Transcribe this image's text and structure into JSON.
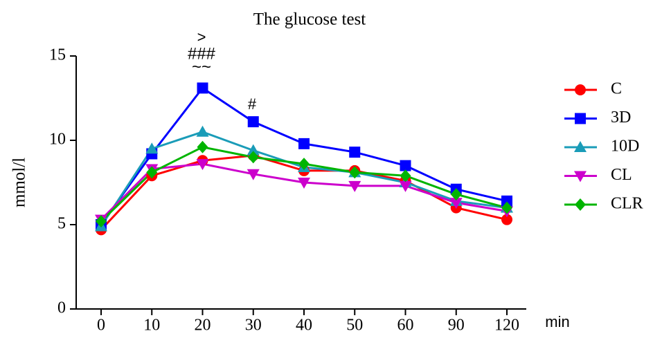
{
  "chart_data": {
    "type": "line",
    "title": "The glucose test",
    "x_label": "min",
    "y_label": "mmol/l",
    "categories": [
      "0",
      "10",
      "20",
      "30",
      "40",
      "50",
      "60",
      "90",
      "120"
    ],
    "series": [
      {
        "name": "C",
        "color": "#ff0000",
        "marker": "circle",
        "values": [
          4.7,
          7.9,
          8.8,
          9.1,
          8.2,
          8.2,
          7.6,
          6.0,
          5.3
        ]
      },
      {
        "name": "3D",
        "color": "#0000ff",
        "marker": "square",
        "values": [
          5.0,
          9.2,
          13.1,
          11.1,
          9.8,
          9.3,
          8.5,
          7.1,
          6.4
        ]
      },
      {
        "name": "10D",
        "color": "#1a9cb8",
        "marker": "triangle",
        "values": [
          4.9,
          9.5,
          10.5,
          9.4,
          8.4,
          8.1,
          7.5,
          6.4,
          6.0
        ]
      },
      {
        "name": "CL",
        "color": "#cc00cc",
        "marker": "triangle-down",
        "values": [
          5.3,
          8.3,
          8.6,
          8.0,
          7.5,
          7.3,
          7.3,
          6.3,
          5.8
        ]
      },
      {
        "name": "CLR",
        "color": "#00b400",
        "marker": "diamond",
        "values": [
          5.2,
          8.1,
          9.6,
          9.0,
          8.6,
          8.1,
          7.9,
          6.8,
          6.0
        ]
      }
    ],
    "annotations": [
      ">",
      "###",
      "~~",
      "#"
    ],
    "ylim": [
      0,
      15
    ],
    "yticks": [
      0,
      5,
      10,
      15
    ],
    "grid": false,
    "legend": "right"
  }
}
